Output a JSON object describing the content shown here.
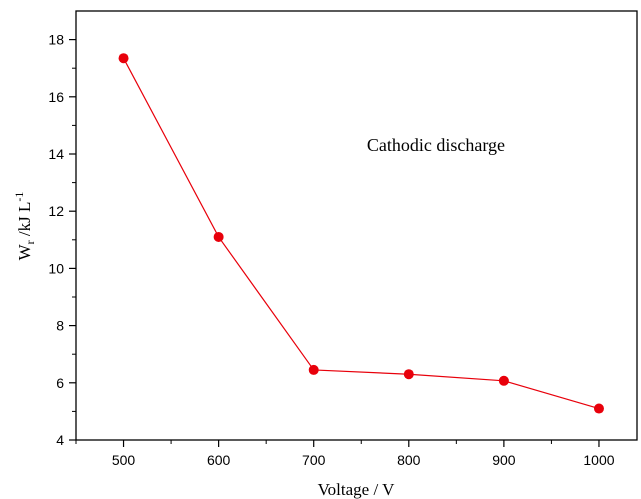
{
  "chart_data": {
    "type": "line",
    "title": "",
    "xlabel": "Voltage / V",
    "ylabel": {
      "base": "W",
      "sub": "r",
      "mid": " /kJ L",
      "sup": "-1"
    },
    "annotation": "Cathodic discharge",
    "xlim": [
      450,
      1040
    ],
    "ylim": [
      4,
      19
    ],
    "xticks": [
      500,
      600,
      700,
      800,
      900,
      1000
    ],
    "yticks": [
      4,
      6,
      8,
      10,
      12,
      14,
      16,
      18
    ],
    "grid": false,
    "color": "#e8000b",
    "series": [
      {
        "x": [
          500,
          600,
          700,
          800,
          900,
          1000
        ],
        "y": [
          17.35,
          11.1,
          6.45,
          6.3,
          6.07,
          5.1
        ]
      }
    ]
  }
}
